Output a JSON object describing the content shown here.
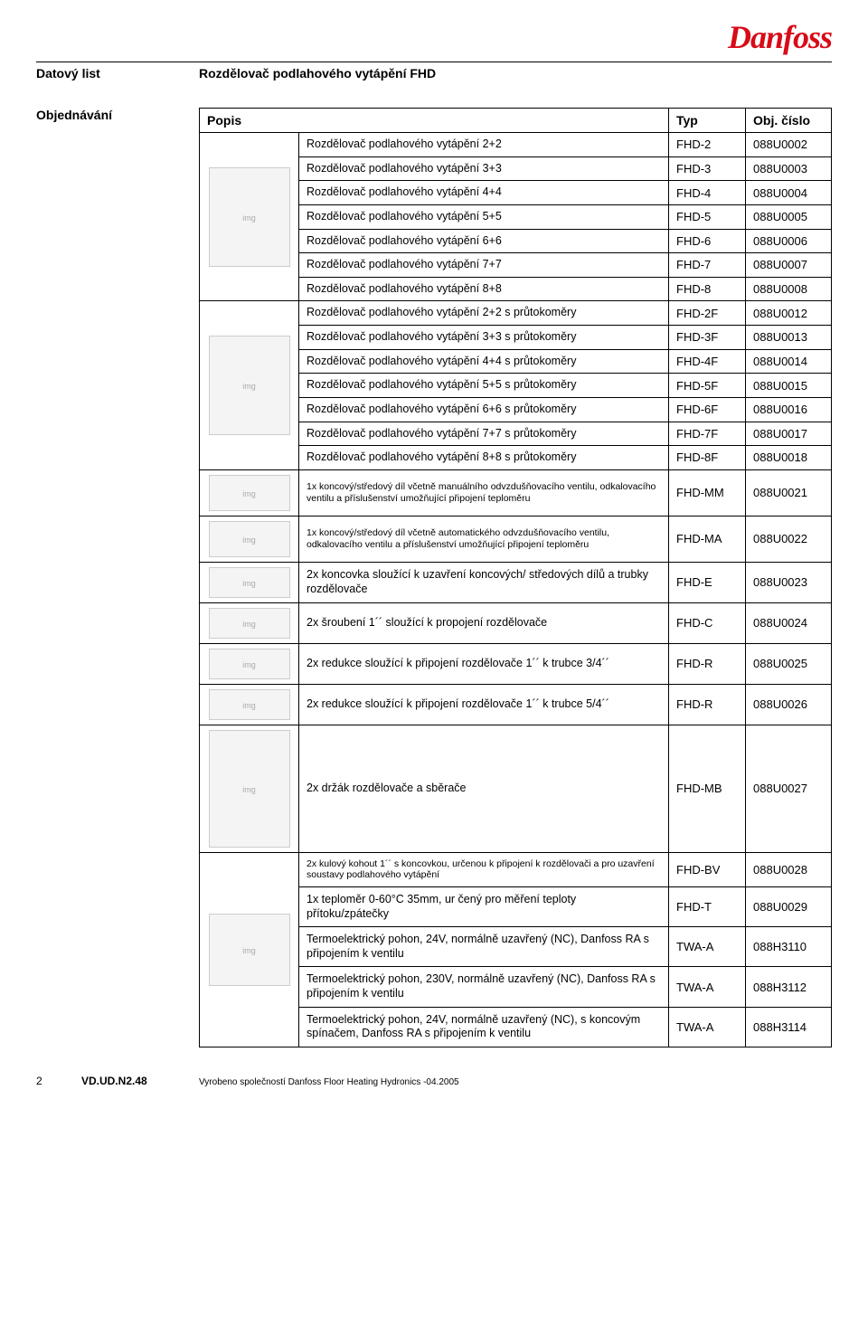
{
  "brand": "Danfoss",
  "brand_color": "#d80b18",
  "header": {
    "datovy": "Datový list",
    "title": "Rozdělovač podlahového vytápění FHD"
  },
  "side_label": "Objednávání",
  "table": {
    "headers": {
      "popis": "Popis",
      "typ": "Typ",
      "obj": "Obj. číslo"
    },
    "group1": {
      "img_alt": "manifold 2-8",
      "rows": [
        {
          "desc": "Rozdělovač podlahového vytápění  2+2",
          "typ": "FHD-2",
          "obj": "088U0002"
        },
        {
          "desc": "Rozdělovač podlahového vytápění  3+3",
          "typ": "FHD-3",
          "obj": "088U0003"
        },
        {
          "desc": "Rozdělovač podlahového vytápění  4+4",
          "typ": "FHD-4",
          "obj": "088U0004"
        },
        {
          "desc": "Rozdělovač podlahového vytápění  5+5",
          "typ": "FHD-5",
          "obj": "088U0005"
        },
        {
          "desc": "Rozdělovač podlahového vytápění  6+6",
          "typ": "FHD-6",
          "obj": "088U0006"
        },
        {
          "desc": "Rozdělovač podlahového vytápění  7+7",
          "typ": "FHD-7",
          "obj": "088U0007"
        },
        {
          "desc": "Rozdělovač podlahového vytápění  8+8",
          "typ": "FHD-8",
          "obj": "088U0008"
        }
      ]
    },
    "group2": {
      "img_alt": "manifold with flowmeters",
      "rows": [
        {
          "desc": "Rozdělovač podlahového vytápění 2+2 s průtokoměry",
          "typ": "FHD-2F",
          "obj": "088U0012"
        },
        {
          "desc": "Rozdělovač podlahového vytápění 3+3 s průtokoměry",
          "typ": "FHD-3F",
          "obj": "088U0013"
        },
        {
          "desc": "Rozdělovač podlahového vytápění 4+4 s průtokoměry",
          "typ": "FHD-4F",
          "obj": "088U0014"
        },
        {
          "desc": "Rozdělovač podlahového vytápění 5+5 s průtokoměry",
          "typ": "FHD-5F",
          "obj": "088U0015"
        },
        {
          "desc": "Rozdělovač podlahového vytápění 6+6 s průtokoměry",
          "typ": "FHD-6F",
          "obj": "088U0016"
        },
        {
          "desc": "Rozdělovač podlahového vytápění 7+7 s průtokoměry",
          "typ": "FHD-7F",
          "obj": "088U0017"
        },
        {
          "desc": "Rozdělovač podlahového vytápění 8+8 s průtokoměry",
          "typ": "FHD-8F",
          "obj": "088U0018"
        }
      ]
    },
    "singles": [
      {
        "img_alt": "end manual",
        "small": true,
        "ph": "ph-sm",
        "desc": "1x  koncový/středový díl včetně manuálního odvzdušňovacího ventilu, odkalovacího ventilu a příslušenství umožňující připojení teploměru",
        "typ": "FHD-MM",
        "obj": "088U0021"
      },
      {
        "img_alt": "end auto",
        "small": true,
        "ph": "ph-sm",
        "desc": "1x  koncový/středový díl včetně automatického odvzdušňovacího ventilu, odkalovacího ventilu a příslušenství umožňující připojení teploměru",
        "typ": "FHD-MA",
        "obj": "088U0022"
      },
      {
        "img_alt": "end caps",
        "small": false,
        "ph": "ph-xs",
        "desc": "2x koncovka sloužící k uzavření koncových/ středových dílů a trubky rozdělovače",
        "typ": "FHD-E",
        "obj": "088U0023"
      },
      {
        "img_alt": "coupling 1in",
        "small": false,
        "ph": "ph-xs",
        "desc": "2x šroubení 1´´ sloužící k propojení rozdělovače",
        "typ": "FHD-C",
        "obj": "088U0024"
      },
      {
        "img_alt": "reducer 3/4",
        "small": false,
        "ph": "ph-xs",
        "desc": "2x redukce sloužící k připojení rozdělovače 1´´ k trubce 3/4´´",
        "typ": "FHD-R",
        "obj": "088U0025"
      },
      {
        "img_alt": "reducer 5/4",
        "small": false,
        "ph": "ph-xs",
        "desc": "2x redukce sloužící k připojení rozdělovače 1´´ k trubce 5/4´´",
        "typ": "FHD-R",
        "obj": "088U0026"
      },
      {
        "img_alt": "bracket",
        "small": false,
        "ph": "ph-big",
        "desc": "2x držák rozdělovače a sběrače",
        "typ": "FHD-MB",
        "obj": "088U0027"
      }
    ],
    "group3": {
      "img_alt": "ball valves + thermo + actuators",
      "rows": [
        {
          "small": true,
          "desc": "2x kulový kohout 1´´ s koncovkou, určenou k připojení k rozdělovači a pro uzavření soustavy podlahového vytápění",
          "typ": "FHD-BV",
          "obj": "088U0028"
        },
        {
          "small": false,
          "desc": "1x teploměr 0-60°C   35mm, ur  čený pro měření teploty přítoku/zpátečky",
          "typ": "FHD-T",
          "obj": "088U0029"
        },
        {
          "small": false,
          "desc": "Termoelektrický pohon, 24V, normálně uzavřený (NC), Danfoss RA s připojením k ventilu",
          "typ": "TWA-A",
          "obj": "088H3110"
        },
        {
          "small": false,
          "desc": "Termoelektrický pohon, 230V, normálně uzavřený (NC), Danfoss RA s připojením k ventilu",
          "typ": "TWA-A",
          "obj": "088H3112"
        },
        {
          "small": false,
          "desc": "Termoelektrický pohon, 24V, normálně uzavřený (NC), s koncovým spínačem, Danfoss RA s připojením k ventilu",
          "typ": "TWA-A",
          "obj": "088H3114"
        }
      ]
    }
  },
  "footer": {
    "page": "2",
    "doc_id": "VD.UD.N2.48",
    "note": "Vyrobeno společností Danfoss Floor Heating Hydronics -04.2005"
  }
}
